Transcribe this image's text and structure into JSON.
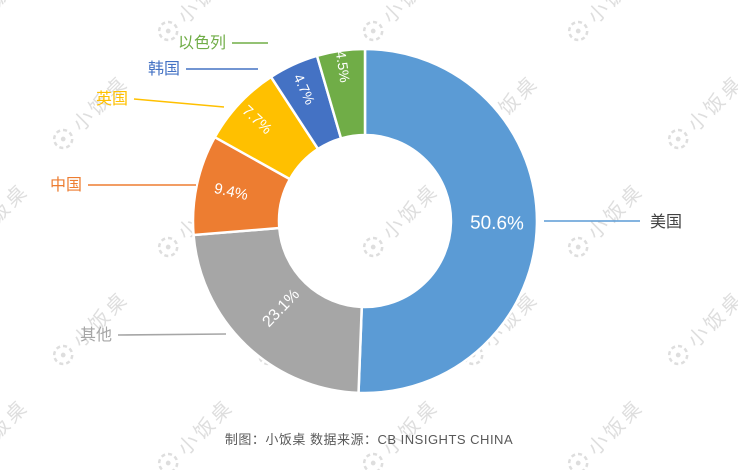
{
  "watermark": {
    "text": "小饭桌"
  },
  "caption": {
    "text": "制图：小饭桌  数据来源：CB INSIGHTS CHINA"
  },
  "chart_data": {
    "type": "pie",
    "subtype": "donut",
    "title": "",
    "categories": [
      "美国",
      "其他",
      "中国",
      "英国",
      "韩国",
      "以色列"
    ],
    "values": [
      50.6,
      23.1,
      9.4,
      7.7,
      4.7,
      4.5
    ],
    "value_labels": [
      "50.6%",
      "23.1%",
      "9.4%",
      "7.7%",
      "4.7%",
      "4.5%"
    ],
    "colors": [
      "#5B9BD5",
      "#A6A6A6",
      "#ED7D31",
      "#FFC000",
      "#4472C4",
      "#70AD47"
    ],
    "category_label_colors": [
      "#404040",
      "#A6A6A6",
      "#ED7D31",
      "#FFC000",
      "#4472C4",
      "#70AD47"
    ],
    "start_angle_deg": 0,
    "direction": "clockwise",
    "inner_radius_ratio": 0.5,
    "legend_position": "callout-labels",
    "credit": "制图：小饭桌",
    "source_note": "数据来源：CB INSIGHTS CHINA"
  }
}
